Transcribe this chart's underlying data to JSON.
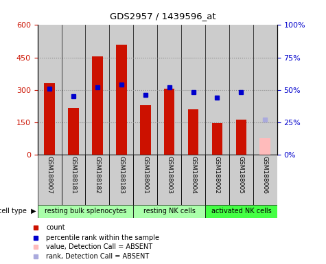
{
  "title": "GDS2957 / 1439596_at",
  "samples": [
    "GSM188007",
    "GSM188181",
    "GSM188182",
    "GSM188183",
    "GSM188001",
    "GSM188003",
    "GSM188004",
    "GSM188002",
    "GSM188005",
    "GSM188006"
  ],
  "counts": [
    330,
    215,
    455,
    510,
    230,
    305,
    210,
    145,
    160,
    75
  ],
  "percentile_ranks": [
    51,
    45,
    52,
    54,
    46,
    52,
    48,
    44,
    48,
    null
  ],
  "absent_value": [
    null,
    null,
    null,
    null,
    null,
    null,
    null,
    null,
    null,
    75
  ],
  "absent_rank": [
    null,
    null,
    null,
    null,
    null,
    null,
    null,
    null,
    null,
    27
  ],
  "count_color": "#cc1100",
  "absent_count_color": "#ffbbbb",
  "percentile_color": "#0000cc",
  "absent_rank_color": "#aaaadd",
  "ylim_left": [
    0,
    600
  ],
  "ylim_right": [
    0,
    100
  ],
  "yticks_left": [
    0,
    150,
    300,
    450,
    600
  ],
  "yticks_right": [
    0,
    25,
    50,
    75,
    100
  ],
  "ytick_labels_right": [
    "0%",
    "25%",
    "50%",
    "75%",
    "100%"
  ],
  "bar_width": 0.45,
  "grid_dotted_at": [
    150,
    300,
    450
  ],
  "grid_color": "#888888",
  "bg_color": "#cccccc",
  "plot_bg": "#ffffff",
  "group_spans": [
    {
      "start": 0,
      "end": 3,
      "label": "resting bulk splenocytes",
      "color": "#aaffaa"
    },
    {
      "start": 4,
      "end": 6,
      "label": "resting NK cells",
      "color": "#aaffaa"
    },
    {
      "start": 7,
      "end": 9,
      "label": "activated NK cells",
      "color": "#44ff44"
    }
  ],
  "cell_type_label": "cell type",
  "legend_items": [
    {
      "label": "count",
      "color": "#cc1100"
    },
    {
      "label": "percentile rank within the sample",
      "color": "#0000cc"
    },
    {
      "label": "value, Detection Call = ABSENT",
      "color": "#ffbbbb"
    },
    {
      "label": "rank, Detection Call = ABSENT",
      "color": "#aaaadd"
    }
  ]
}
